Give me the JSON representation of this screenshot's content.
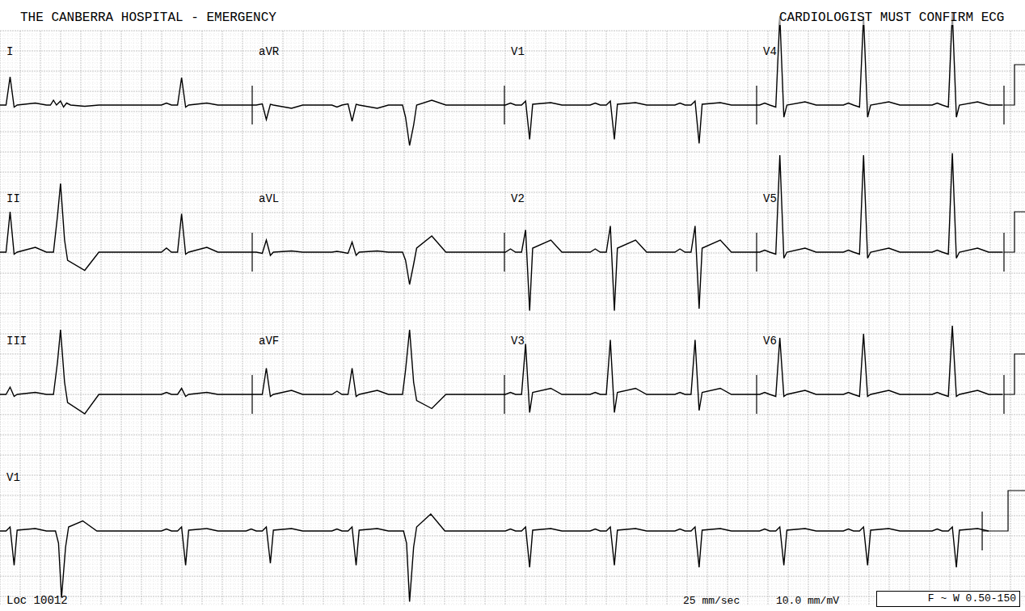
{
  "header": {
    "title": "THE CANBERRA HOSPITAL - EMERGENCY",
    "notice": "CARDIOLOGIST MUST CONFIRM ECG"
  },
  "footer": {
    "location": "Loc 10012",
    "speed": "25 mm/sec",
    "gain": "10.0 mm/mV",
    "filter": "F ~ W 0.50-150"
  },
  "chart_data": [
    {
      "type": "line",
      "title": "I",
      "color": "#000000",
      "tick_labels": false,
      "xlim": [
        0,
        2.5
      ],
      "ylim": [
        -1.6,
        2.6
      ],
      "x": [
        0,
        0.06,
        0.1,
        0.14,
        0.17,
        0.35,
        0.46,
        0.5,
        0.53,
        0.56,
        0.6,
        0.63,
        0.66,
        0.7,
        0.84,
        0.98,
        1.6,
        1.65,
        1.7,
        1.76,
        1.8,
        1.84,
        1.87,
        2.05,
        2.16,
        2.5
      ],
      "values": [
        0,
        0,
        0.7,
        -0.05,
        0,
        0.05,
        0,
        0,
        0.12,
        0,
        0.1,
        -0.05,
        0.05,
        0,
        -0.03,
        0,
        0,
        0.05,
        0,
        0,
        0.68,
        -0.05,
        0,
        0.05,
        0,
        0
      ]
    },
    {
      "type": "line",
      "title": "II",
      "color": "#000000",
      "tick_labels": false,
      "xlim": [
        0,
        2.5
      ],
      "ylim": [
        -1.6,
        2.6
      ],
      "x": [
        0,
        0.06,
        0.1,
        0.14,
        0.17,
        0.35,
        0.46,
        0.53,
        0.57,
        0.6,
        0.64,
        0.67,
        0.84,
        0.98,
        1.6,
        1.65,
        1.7,
        1.76,
        1.8,
        1.84,
        1.87,
        2.05,
        2.16,
        2.5
      ],
      "values": [
        0,
        0,
        1.0,
        -0.05,
        0,
        0.12,
        0,
        0,
        0.9,
        1.7,
        0.3,
        -0.2,
        -0.45,
        0,
        0,
        0.1,
        0,
        0,
        0.95,
        -0.05,
        0,
        0.12,
        0,
        0
      ]
    },
    {
      "type": "line",
      "title": "III",
      "color": "#000000",
      "tick_labels": false,
      "xlim": [
        0,
        2.5
      ],
      "ylim": [
        -1.6,
        2.6
      ],
      "x": [
        0,
        0.06,
        0.1,
        0.14,
        0.17,
        0.35,
        0.46,
        0.53,
        0.57,
        0.6,
        0.64,
        0.67,
        0.84,
        0.98,
        1.6,
        1.65,
        1.7,
        1.76,
        1.8,
        1.84,
        1.87,
        2.05,
        2.16,
        2.5
      ],
      "values": [
        0,
        0,
        0.18,
        -0.05,
        0,
        0.05,
        0,
        0,
        0.8,
        1.6,
        0.3,
        -0.2,
        -0.48,
        0,
        0,
        0.05,
        0,
        0,
        0.15,
        -0.05,
        0,
        0.05,
        0,
        0
      ]
    },
    {
      "type": "line",
      "title": "aVR",
      "color": "#000000",
      "tick_labels": false,
      "xlim": [
        2.5,
        5.0
      ],
      "ylim": [
        -1.6,
        2.6
      ],
      "x": [
        2.5,
        2.54,
        2.6,
        2.64,
        2.68,
        2.71,
        2.89,
        3.0,
        3.29,
        3.34,
        3.39,
        3.45,
        3.49,
        3.53,
        3.56,
        3.74,
        3.85,
        3.99,
        4.02,
        4.06,
        4.1,
        4.13,
        4.28,
        4.42,
        5.0
      ],
      "values": [
        0,
        0,
        0.03,
        -0.36,
        0.02,
        0,
        -0.08,
        0,
        0,
        -0.05,
        0,
        0.03,
        -0.4,
        0.02,
        0,
        -0.08,
        0,
        0,
        -0.3,
        -1.0,
        -0.5,
        0,
        0.12,
        0,
        0
      ]
    },
    {
      "type": "line",
      "title": "aVL",
      "color": "#000000",
      "tick_labels": false,
      "xlim": [
        2.5,
        5.0
      ],
      "ylim": [
        -1.6,
        2.6
      ],
      "x": [
        2.5,
        2.54,
        2.6,
        2.64,
        2.68,
        2.71,
        2.89,
        3.0,
        3.29,
        3.34,
        3.39,
        3.45,
        3.49,
        3.53,
        3.56,
        3.74,
        3.85,
        3.99,
        4.02,
        4.06,
        4.1,
        4.13,
        4.28,
        4.42,
        5.0
      ],
      "values": [
        0,
        0,
        -0.03,
        0.3,
        -0.08,
        0,
        0.03,
        0,
        0,
        0.02,
        0,
        -0.03,
        0.25,
        -0.08,
        0,
        0.03,
        0,
        0,
        -0.2,
        -0.8,
        -0.3,
        0.1,
        0.4,
        0,
        0
      ]
    },
    {
      "type": "line",
      "title": "aVF",
      "color": "#000000",
      "tick_labels": false,
      "xlim": [
        2.5,
        5.0
      ],
      "ylim": [
        -1.6,
        2.6
      ],
      "x": [
        2.5,
        2.54,
        2.6,
        2.64,
        2.68,
        2.71,
        2.89,
        3.0,
        3.29,
        3.34,
        3.39,
        3.45,
        3.49,
        3.53,
        3.56,
        3.74,
        3.85,
        3.99,
        4.02,
        4.06,
        4.1,
        4.13,
        4.28,
        4.42,
        5.0
      ],
      "values": [
        0,
        0,
        0,
        0.65,
        -0.05,
        0,
        0.1,
        0,
        0,
        0.08,
        0,
        0,
        0.65,
        -0.05,
        0,
        0.1,
        0,
        0,
        0.6,
        1.6,
        0.3,
        -0.15,
        -0.35,
        0,
        0
      ]
    },
    {
      "type": "line",
      "title": "V1",
      "color": "#000000",
      "tick_labels": false,
      "xlim": [
        5.0,
        7.5
      ],
      "ylim": [
        -1.6,
        2.6
      ],
      "x": [
        5.0,
        5.01,
        5.06,
        5.11,
        5.17,
        5.21,
        5.25,
        5.28,
        5.46,
        5.57,
        5.85,
        5.9,
        5.95,
        6.01,
        6.05,
        6.09,
        6.12,
        6.3,
        6.41,
        6.69,
        6.74,
        6.79,
        6.85,
        6.89,
        6.93,
        6.96,
        7.14,
        7.25,
        7.5
      ],
      "values": [
        0,
        0,
        0.05,
        0,
        0,
        0.1,
        -0.85,
        0.02,
        0.06,
        0,
        0,
        0.05,
        0,
        0,
        0.1,
        -0.85,
        0.02,
        0.06,
        0,
        0,
        0.05,
        0,
        0,
        0.1,
        -0.95,
        0.02,
        0.06,
        0,
        0
      ]
    },
    {
      "type": "line",
      "title": "V2",
      "color": "#000000",
      "tick_labels": false,
      "xlim": [
        5.0,
        7.5
      ],
      "ylim": [
        -1.6,
        2.6
      ],
      "x": [
        5.0,
        5.01,
        5.06,
        5.11,
        5.17,
        5.21,
        5.25,
        5.28,
        5.46,
        5.57,
        5.85,
        5.9,
        5.95,
        6.01,
        6.05,
        6.09,
        6.12,
        6.3,
        6.41,
        6.69,
        6.74,
        6.79,
        6.85,
        6.89,
        6.93,
        6.96,
        7.14,
        7.25,
        7.5
      ],
      "values": [
        0,
        0,
        0.08,
        0,
        0,
        0.55,
        -1.45,
        0.1,
        0.3,
        0,
        0,
        0.08,
        0,
        0,
        0.65,
        -1.45,
        0.1,
        0.3,
        0,
        0,
        0.08,
        0,
        0,
        0.65,
        -1.4,
        0.1,
        0.3,
        0,
        0
      ]
    },
    {
      "type": "line",
      "title": "V3",
      "color": "#000000",
      "tick_labels": false,
      "xlim": [
        5.0,
        7.5
      ],
      "ylim": [
        -1.6,
        2.6
      ],
      "x": [
        5.0,
        5.01,
        5.06,
        5.11,
        5.17,
        5.21,
        5.25,
        5.28,
        5.46,
        5.57,
        5.85,
        5.9,
        5.95,
        6.01,
        6.05,
        6.09,
        6.12,
        6.3,
        6.41,
        6.69,
        6.74,
        6.79,
        6.85,
        6.89,
        6.93,
        6.96,
        7.14,
        7.25,
        7.5
      ],
      "values": [
        0,
        0,
        0.05,
        0,
        0,
        1.25,
        -0.45,
        0.05,
        0.15,
        0,
        0,
        0.05,
        0,
        0,
        1.35,
        -0.45,
        0.05,
        0.15,
        0,
        0,
        0.05,
        0,
        0,
        1.35,
        -0.4,
        0.05,
        0.15,
        0,
        0
      ]
    },
    {
      "type": "line",
      "title": "V4",
      "color": "#000000",
      "tick_labels": false,
      "xlim": [
        7.5,
        10.0
      ],
      "ylim": [
        -1.6,
        2.6
      ],
      "x": [
        7.5,
        7.53,
        7.58,
        7.63,
        7.69,
        7.73,
        7.77,
        7.8,
        7.98,
        8.09,
        8.36,
        8.41,
        8.46,
        8.52,
        8.56,
        8.6,
        8.63,
        8.81,
        8.92,
        9.24,
        9.29,
        9.34,
        9.4,
        9.44,
        9.48,
        9.51,
        9.69,
        9.8,
        9.94
      ],
      "values": [
        0,
        0,
        0.05,
        0,
        -0.05,
        2.2,
        -0.3,
        0,
        0.08,
        0,
        0,
        0.05,
        0,
        -0.05,
        2.2,
        -0.3,
        0,
        0.08,
        0,
        0,
        0.05,
        0,
        -0.05,
        2.3,
        -0.3,
        0,
        0.08,
        0,
        0
      ]
    },
    {
      "type": "line",
      "title": "V5",
      "color": "#000000",
      "tick_labels": false,
      "xlim": [
        7.5,
        10.0
      ],
      "ylim": [
        -1.6,
        2.6
      ],
      "x": [
        7.5,
        7.53,
        7.58,
        7.63,
        7.69,
        7.73,
        7.77,
        7.8,
        7.98,
        8.09,
        8.36,
        8.41,
        8.46,
        8.52,
        8.56,
        8.6,
        8.63,
        8.81,
        8.92,
        9.24,
        9.29,
        9.34,
        9.4,
        9.44,
        9.48,
        9.51,
        9.69,
        9.8,
        9.94
      ],
      "values": [
        0,
        0,
        0.05,
        0,
        -0.05,
        2.4,
        -0.15,
        0,
        0.1,
        0,
        0,
        0.05,
        0,
        -0.05,
        2.4,
        -0.15,
        0,
        0.1,
        0,
        0,
        0.05,
        0,
        -0.05,
        2.45,
        -0.15,
        0,
        0.1,
        0,
        0
      ]
    },
    {
      "type": "line",
      "title": "V6",
      "color": "#000000",
      "tick_labels": false,
      "xlim": [
        7.5,
        10.0
      ],
      "ylim": [
        -1.6,
        2.6
      ],
      "x": [
        7.5,
        7.53,
        7.58,
        7.63,
        7.69,
        7.73,
        7.77,
        7.8,
        7.98,
        8.09,
        8.36,
        8.41,
        8.46,
        8.52,
        8.56,
        8.6,
        8.63,
        8.81,
        8.92,
        9.24,
        9.29,
        9.34,
        9.4,
        9.44,
        9.48,
        9.51,
        9.69,
        9.8,
        9.94
      ],
      "values": [
        0,
        0,
        0.05,
        0,
        -0.05,
        1.4,
        -0.05,
        0,
        0.1,
        0,
        0,
        0.05,
        0,
        -0.05,
        1.5,
        -0.05,
        0,
        0.1,
        0,
        0,
        0.05,
        0,
        -0.05,
        1.7,
        -0.05,
        0,
        0.1,
        0,
        0
      ]
    },
    {
      "type": "line",
      "title": "V1",
      "color": "#000000",
      "tick_labels": false,
      "xlim": [
        0,
        9.8
      ],
      "ylim": [
        -1.8,
        1.2
      ],
      "x": [
        0,
        0.06,
        0.1,
        0.14,
        0.17,
        0.35,
        0.46,
        0.55,
        0.58,
        0.61,
        0.65,
        0.68,
        0.82,
        0.96,
        1.6,
        1.65,
        1.7,
        1.76,
        1.8,
        1.84,
        1.87,
        2.05,
        2.16,
        2.44,
        2.49,
        2.54,
        2.6,
        2.64,
        2.68,
        2.71,
        2.89,
        3.0,
        3.29,
        3.34,
        3.39,
        3.45,
        3.49,
        3.53,
        3.56,
        3.74,
        3.85,
        4.0,
        4.03,
        4.06,
        4.1,
        4.13,
        4.27,
        4.41,
        5.01,
        5.06,
        5.11,
        5.17,
        5.21,
        5.25,
        5.28,
        5.46,
        5.57,
        5.85,
        5.9,
        5.95,
        6.01,
        6.05,
        6.09,
        6.12,
        6.3,
        6.41,
        6.69,
        6.74,
        6.79,
        6.85,
        6.89,
        6.93,
        6.96,
        7.14,
        7.25,
        7.53,
        7.58,
        7.63,
        7.69,
        7.73,
        7.77,
        7.8,
        7.98,
        8.09,
        8.36,
        8.41,
        8.46,
        8.52,
        8.56,
        8.6,
        8.63,
        8.81,
        8.92,
        9.24,
        9.29,
        9.34,
        9.4,
        9.44,
        9.48,
        9.51,
        9.69,
        9.8
      ],
      "values": [
        0,
        0,
        0.1,
        -0.85,
        0.02,
        0.06,
        0,
        0,
        -0.3,
        -1.65,
        -0.4,
        0.1,
        0.25,
        0,
        0,
        0.05,
        0,
        0,
        0.1,
        -0.85,
        0.02,
        0.06,
        0,
        0,
        0.05,
        0,
        0,
        0.1,
        -0.8,
        0.02,
        0.06,
        0,
        0,
        0.05,
        0,
        0,
        0.1,
        -0.85,
        0.02,
        0.06,
        0,
        0,
        -0.3,
        -1.75,
        -0.4,
        0.1,
        0.42,
        0,
        0,
        0.05,
        0,
        0,
        0.1,
        -0.9,
        0.02,
        0.06,
        0,
        0,
        0.05,
        0,
        0,
        0.1,
        -0.85,
        0.02,
        0.06,
        0,
        0,
        0.05,
        0,
        0,
        0.1,
        -0.9,
        0.02,
        0.06,
        0,
        0,
        0.05,
        0,
        0,
        0.1,
        -0.85,
        0.02,
        0.06,
        0,
        0,
        0.05,
        0,
        0,
        0.1,
        -0.85,
        0.02,
        0.06,
        0,
        0,
        0.05,
        0,
        0,
        0.1,
        -0.9,
        0.02,
        0.06,
        0
      ]
    }
  ]
}
